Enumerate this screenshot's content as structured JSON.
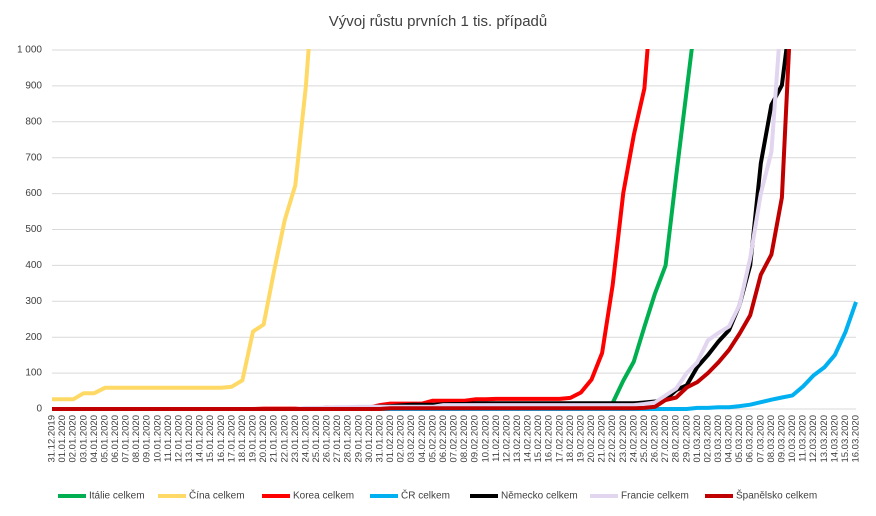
{
  "chart_data": {
    "type": "line",
    "title": "Vývoj růstu prvních 1 tis. případů",
    "categories": [
      "31.12.2019",
      "01.01.2020",
      "02.01.2020",
      "03.01.2020",
      "04.01.2020",
      "05.01.2020",
      "06.01.2020",
      "07.01.2020",
      "08.01.2020",
      "09.01.2020",
      "10.01.2020",
      "11.01.2020",
      "12.01.2020",
      "13.01.2020",
      "14.01.2020",
      "15.01.2020",
      "16.01.2020",
      "17.01.2020",
      "18.01.2020",
      "19.01.2020",
      "20.01.2020",
      "21.01.2020",
      "22.01.2020",
      "23.01.2020",
      "24.01.2020",
      "25.01.2020",
      "26.01.2020",
      "27.01.2020",
      "28.01.2020",
      "29.01.2020",
      "30.01.2020",
      "31.01.2020",
      "01.02.2020",
      "02.02.2020",
      "03.02.2020",
      "04.02.2020",
      "05.02.2020",
      "06.02.2020",
      "07.02.2020",
      "08.02.2020",
      "09.02.2020",
      "10.02.2020",
      "11.02.2020",
      "12.02.2020",
      "13.02.2020",
      "14.02.2020",
      "15.02.2020",
      "16.02.2020",
      "17.02.2020",
      "18.02.2020",
      "19.02.2020",
      "20.02.2020",
      "21.02.2020",
      "22.02.2020",
      "23.02.2020",
      "24.02.2020",
      "25.02.2020",
      "26.02.2020",
      "27.02.2020",
      "28.02.2020",
      "29.02.2020",
      "01.03.2020",
      "02.03.2020",
      "03.03.2020",
      "04.03.2020",
      "05.03.2020",
      "06.03.2020",
      "07.03.2020",
      "08.03.2020",
      "09.03.2020",
      "10.03.2020",
      "11.03.2020",
      "12.03.2020",
      "13.03.2020",
      "14.03.2020",
      "15.03.2020",
      "16.03.2020"
    ],
    "series": [
      {
        "name": "Itálie celkem",
        "color": "#00b050",
        "values": [
          0,
          0,
          0,
          0,
          0,
          0,
          0,
          0,
          0,
          0,
          0,
          0,
          0,
          0,
          0,
          0,
          0,
          0,
          0,
          0,
          0,
          0,
          0,
          0,
          0,
          0,
          0,
          0,
          0,
          0,
          0,
          2,
          2,
          2,
          2,
          2,
          2,
          2,
          3,
          3,
          3,
          3,
          3,
          3,
          3,
          3,
          3,
          3,
          3,
          3,
          3,
          3,
          3,
          17,
          79,
          132,
          229,
          322,
          400,
          650,
          888,
          1128,
          null,
          null,
          null,
          null,
          null,
          null,
          null,
          null,
          null,
          null,
          null,
          null,
          null,
          null,
          null
        ]
      },
      {
        "name": "Čína celkem",
        "color": "#ffd966",
        "values": [
          27,
          27,
          27,
          44,
          44,
          59,
          59,
          59,
          59,
          59,
          59,
          59,
          59,
          59,
          59,
          59,
          59,
          62,
          80,
          216,
          235,
          386,
          526,
          623,
          900,
          1297,
          null,
          null,
          null,
          null,
          null,
          null,
          null,
          null,
          null,
          null,
          null,
          null,
          null,
          null,
          null,
          null,
          null,
          null,
          null,
          null,
          null,
          null,
          null,
          null,
          null,
          null,
          null,
          null,
          null,
          null,
          null,
          null,
          null,
          null,
          null,
          null,
          null,
          null,
          null,
          null,
          null,
          null,
          null,
          null,
          null,
          null,
          null,
          null,
          null,
          null,
          null
        ]
      },
      {
        "name": "Korea celkem",
        "color": "#ff0000",
        "values": [
          0,
          0,
          0,
          0,
          0,
          0,
          0,
          0,
          0,
          0,
          0,
          0,
          0,
          0,
          0,
          0,
          0,
          0,
          0,
          0,
          1,
          1,
          1,
          1,
          1,
          1,
          4,
          4,
          4,
          4,
          4,
          11,
          15,
          15,
          15,
          15,
          23,
          23,
          23,
          23,
          27,
          27,
          28,
          28,
          28,
          28,
          28,
          28,
          28,
          31,
          46,
          82,
          156,
          346,
          602,
          763,
          893,
          1261,
          null,
          null,
          null,
          null,
          null,
          null,
          null,
          null,
          null,
          null,
          null,
          null,
          null,
          null,
          null,
          null,
          null,
          null,
          null
        ]
      },
      {
        "name": "ČR celkem",
        "color": "#00b0f0",
        "values": [
          0,
          0,
          0,
          0,
          0,
          0,
          0,
          0,
          0,
          0,
          0,
          0,
          0,
          0,
          0,
          0,
          0,
          0,
          0,
          0,
          0,
          0,
          0,
          0,
          0,
          0,
          0,
          0,
          0,
          0,
          0,
          0,
          0,
          0,
          0,
          0,
          0,
          0,
          0,
          0,
          0,
          0,
          0,
          0,
          0,
          0,
          0,
          0,
          0,
          0,
          0,
          0,
          0,
          0,
          0,
          0,
          0,
          0,
          0,
          0,
          0,
          3,
          3,
          5,
          5,
          8,
          12,
          19,
          26,
          32,
          38,
          63,
          94,
          116,
          150,
          214,
          298
        ]
      },
      {
        "name": "Německo celkem",
        "color": "#000000",
        "values": [
          0,
          0,
          0,
          0,
          0,
          0,
          0,
          0,
          0,
          0,
          0,
          0,
          0,
          0,
          0,
          0,
          0,
          0,
          0,
          0,
          0,
          0,
          0,
          0,
          0,
          0,
          0,
          0,
          4,
          4,
          5,
          7,
          8,
          10,
          12,
          12,
          12,
          13,
          14,
          14,
          16,
          16,
          16,
          16,
          16,
          16,
          16,
          16,
          16,
          16,
          16,
          16,
          16,
          16,
          16,
          16,
          18,
          21,
          26,
          53,
          66,
          117,
          150,
          188,
          220,
          290,
          400,
          684,
          847,
          902,
          1139,
          null,
          null,
          null,
          null,
          null,
          null
        ]
      },
      {
        "name": "Francie celkem",
        "color": "#e1d5f0",
        "values": [
          0,
          0,
          0,
          0,
          0,
          0,
          0,
          0,
          0,
          0,
          0,
          0,
          0,
          0,
          0,
          0,
          0,
          0,
          0,
          0,
          0,
          0,
          0,
          0,
          3,
          3,
          4,
          5,
          5,
          6,
          6,
          6,
          6,
          6,
          6,
          6,
          6,
          11,
          11,
          11,
          11,
          11,
          11,
          11,
          11,
          11,
          11,
          11,
          11,
          11,
          11,
          11,
          11,
          11,
          11,
          11,
          14,
          18,
          38,
          57,
          100,
          130,
          191,
          212,
          230,
          290,
          420,
          600,
          716,
          1126,
          null,
          null,
          null,
          null,
          null,
          null,
          null
        ]
      },
      {
        "name": "Španělsko celkem",
        "color": "#c00000",
        "values": [
          0,
          0,
          0,
          0,
          0,
          0,
          0,
          0,
          0,
          0,
          0,
          0,
          0,
          0,
          0,
          0,
          0,
          0,
          0,
          0,
          0,
          0,
          0,
          0,
          0,
          0,
          0,
          0,
          0,
          0,
          0,
          0,
          2,
          2,
          2,
          2,
          2,
          2,
          2,
          2,
          2,
          2,
          2,
          2,
          2,
          2,
          2,
          2,
          2,
          2,
          2,
          2,
          2,
          2,
          2,
          2,
          3,
          6,
          25,
          32,
          60,
          75,
          100,
          130,
          165,
          210,
          261,
          374,
          430,
          589,
          1204,
          null,
          null,
          null,
          null,
          null,
          null
        ]
      }
    ],
    "ylim": [
      0,
      1000
    ],
    "yticks": [
      0,
      100,
      200,
      300,
      400,
      500,
      600,
      700,
      800,
      900,
      {
        "value": 1000,
        "label": "1 000"
      }
    ],
    "grid": true,
    "legend": "bottom"
  }
}
